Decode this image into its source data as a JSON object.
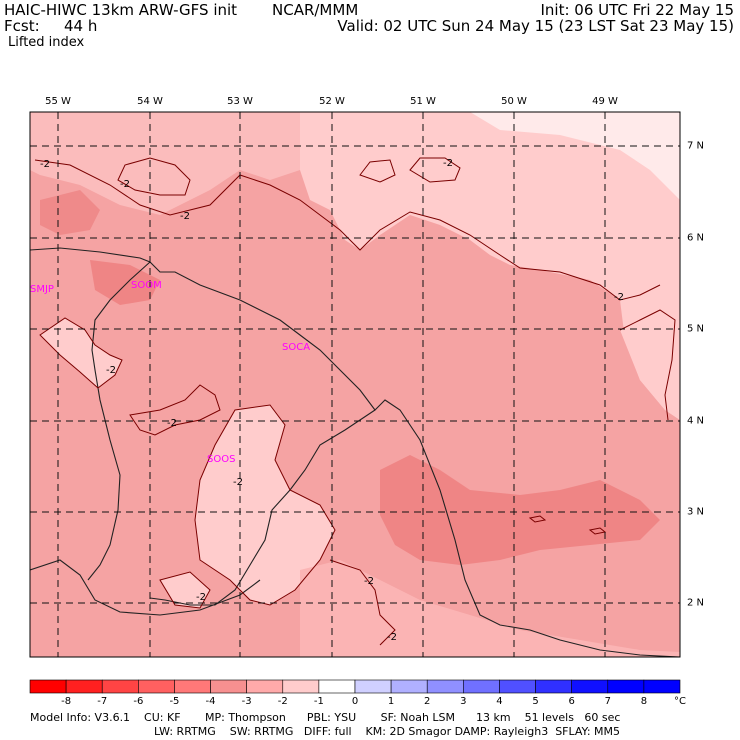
{
  "header": {
    "model": "HAIC-HIWC 13km ARW-GFS init",
    "org": "NCAR/MMM",
    "fcst_label": "Fcst:",
    "fcst_value": "44 h",
    "init": "Init: 06 UTC Fri 22 May 15",
    "valid": "Valid: 02 UTC Sun 24 May 15 (23 LST Sat 23 May 15)",
    "field": "Lifted index"
  },
  "map": {
    "lon_labels": [
      "55 W",
      "54 W",
      "53 W",
      "52 W",
      "51 W",
      "50 W",
      "49 W"
    ],
    "lat_labels": [
      "7 N",
      "6 N",
      "5 N",
      "4 N",
      "3 N",
      "2 N"
    ],
    "stations": [
      "SMJP",
      "SOOM",
      "SOCA",
      "SOOS"
    ],
    "contour_label": "-2",
    "colors": {
      "light": "#ffcccc",
      "medium": "#f7a6a6",
      "dark": "#ef8585",
      "darker": "#e86c6c",
      "near_white": "#ffeaea",
      "station": "#ff00ff"
    }
  },
  "colorbar": {
    "values": [
      "-8",
      "-7",
      "-6",
      "-5",
      "-4",
      "-3",
      "-2",
      "-1",
      "0",
      "1",
      "2",
      "3",
      "4",
      "5",
      "6",
      "7",
      "8"
    ],
    "unit": "°C",
    "colors": [
      "#ff0000",
      "#ff2020",
      "#ff4444",
      "#ff6060",
      "#ff7878",
      "#f79090",
      "#ffaaaa",
      "#ffcccc",
      "#ffffff",
      "#d0d0ff",
      "#b0b0ff",
      "#9090ff",
      "#7070ff",
      "#5050ff",
      "#3030ff",
      "#1010ff",
      "#0000ff"
    ]
  },
  "footer": {
    "line1": "Model Info: V3.6.1    CU: KF       MP: Thompson      PBL: YSU       SF: Noah LSM      13 km    51 levels   60 sec",
    "line2": "LW: RRTMG    SW: RRTMG   DIFF: full    KM: 2D Smagor DAMP: Rayleigh3  SFLAY: MM5"
  }
}
